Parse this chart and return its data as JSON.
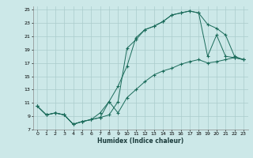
{
  "bg_color": "#cce8e8",
  "grid_color": "#aacccc",
  "line_color": "#1a6b5a",
  "xlabel": "Humidex (Indice chaleur)",
  "xlim": [
    -0.5,
    23.5
  ],
  "ylim": [
    7,
    25.5
  ],
  "yticks": [
    7,
    9,
    11,
    13,
    15,
    17,
    19,
    21,
    23,
    25
  ],
  "xticks": [
    0,
    1,
    2,
    3,
    4,
    5,
    6,
    7,
    8,
    9,
    10,
    11,
    12,
    13,
    14,
    15,
    16,
    17,
    18,
    19,
    20,
    21,
    22,
    23
  ],
  "line1_x": [
    0,
    1,
    2,
    3,
    4,
    5,
    6,
    7,
    8,
    9,
    10,
    11,
    12,
    13,
    14,
    15,
    16,
    17,
    18,
    19,
    20,
    21,
    22,
    23
  ],
  "line1_y": [
    10.5,
    9.2,
    9.5,
    9.2,
    7.8,
    8.2,
    8.5,
    8.8,
    9.2,
    11.2,
    19.2,
    20.5,
    22.0,
    22.5,
    23.2,
    24.2,
    24.5,
    24.8,
    24.5,
    18.0,
    21.2,
    18.0,
    17.8,
    17.5
  ],
  "line2_x": [
    0,
    1,
    2,
    3,
    4,
    5,
    6,
    7,
    8,
    9,
    10,
    11,
    12,
    13,
    14,
    15,
    16,
    17,
    18,
    19,
    20,
    21,
    22,
    23
  ],
  "line2_y": [
    10.5,
    9.2,
    9.5,
    9.2,
    7.8,
    8.2,
    8.5,
    8.8,
    11.2,
    13.5,
    16.5,
    20.8,
    22.0,
    22.5,
    23.2,
    24.2,
    24.5,
    24.8,
    24.5,
    22.8,
    22.2,
    21.2,
    18.0,
    17.5
  ],
  "line3_x": [
    0,
    1,
    2,
    3,
    4,
    5,
    6,
    7,
    8,
    9,
    10,
    11,
    12,
    13,
    14,
    15,
    16,
    17,
    18,
    19,
    20,
    21,
    22,
    23
  ],
  "line3_y": [
    10.5,
    9.2,
    9.5,
    9.2,
    7.8,
    8.2,
    8.5,
    9.5,
    11.2,
    9.5,
    11.8,
    13.0,
    14.2,
    15.2,
    15.8,
    16.2,
    16.8,
    17.2,
    17.5,
    17.0,
    17.2,
    17.5,
    17.8,
    17.5
  ],
  "xlabel_fontsize": 5.5,
  "tick_fontsize": 4.5,
  "linewidth": 0.7,
  "markersize": 2.5
}
